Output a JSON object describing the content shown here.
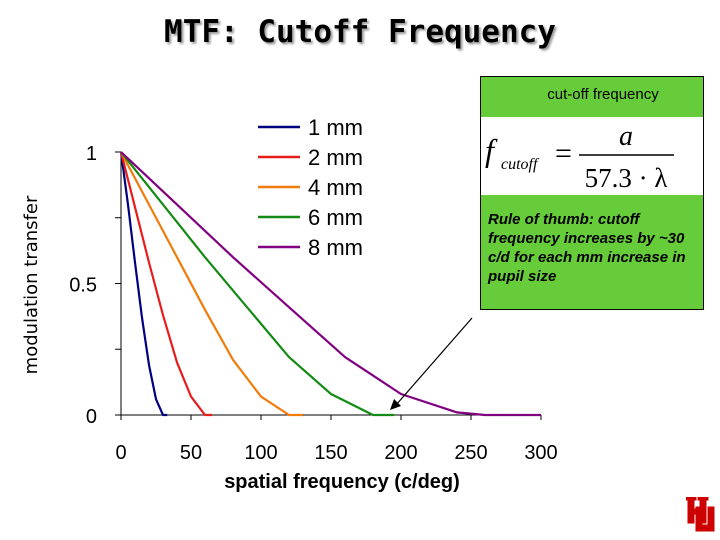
{
  "title": "MTF: Cutoff Frequency",
  "chart_data": {
    "type": "line",
    "title": "",
    "xlabel": "spatial frequency (c/deg)",
    "ylabel": "modulation transfer",
    "xlim": [
      0,
      300
    ],
    "ylim": [
      0,
      1
    ],
    "xticks": [
      "0",
      "50",
      "100",
      "150",
      "200",
      "250",
      "300"
    ],
    "yticks": [
      "0",
      "0.5",
      "1"
    ],
    "legend_position": "top-center",
    "series": [
      {
        "name": "1 mm",
        "color": "#000080",
        "x": [
          0,
          5,
          10,
          15,
          20,
          25,
          30,
          33
        ],
        "y": [
          1.0,
          0.8,
          0.58,
          0.37,
          0.19,
          0.06,
          0.0,
          0.0
        ]
      },
      {
        "name": "2 mm",
        "color": "#e81c1c",
        "x": [
          0,
          10,
          20,
          30,
          40,
          50,
          60,
          65
        ],
        "y": [
          1.0,
          0.79,
          0.58,
          0.38,
          0.2,
          0.07,
          0.0,
          0.0
        ]
      },
      {
        "name": "4 mm",
        "color": "#f07c0c",
        "x": [
          0,
          20,
          40,
          60,
          80,
          100,
          120,
          130
        ],
        "y": [
          1.0,
          0.8,
          0.6,
          0.4,
          0.21,
          0.07,
          0.0,
          0.0
        ]
      },
      {
        "name": "6 mm",
        "color": "#138a13",
        "x": [
          0,
          30,
          60,
          90,
          120,
          150,
          180,
          195
        ],
        "y": [
          1.0,
          0.8,
          0.6,
          0.41,
          0.22,
          0.08,
          0.0,
          0.0
        ]
      },
      {
        "name": "8 mm",
        "color": "#800080",
        "x": [
          0,
          40,
          80,
          120,
          160,
          200,
          240,
          260,
          300
        ],
        "y": [
          1.0,
          0.8,
          0.6,
          0.41,
          0.22,
          0.08,
          0.01,
          0.0,
          0.0
        ]
      }
    ]
  },
  "callout": {
    "title": "cut-off frequency",
    "formula": {
      "lhs": "f",
      "lhs_sub": "cutoff",
      "equals": "=",
      "numerator": "a",
      "denominator": "57.3 · λ"
    },
    "rule": "Rule of thumb: cutoff frequency increases by ~30 c/d for each mm increase in pupil size"
  },
  "logo": {
    "icon": "uh-logo-icon",
    "color": "#cc0000"
  }
}
